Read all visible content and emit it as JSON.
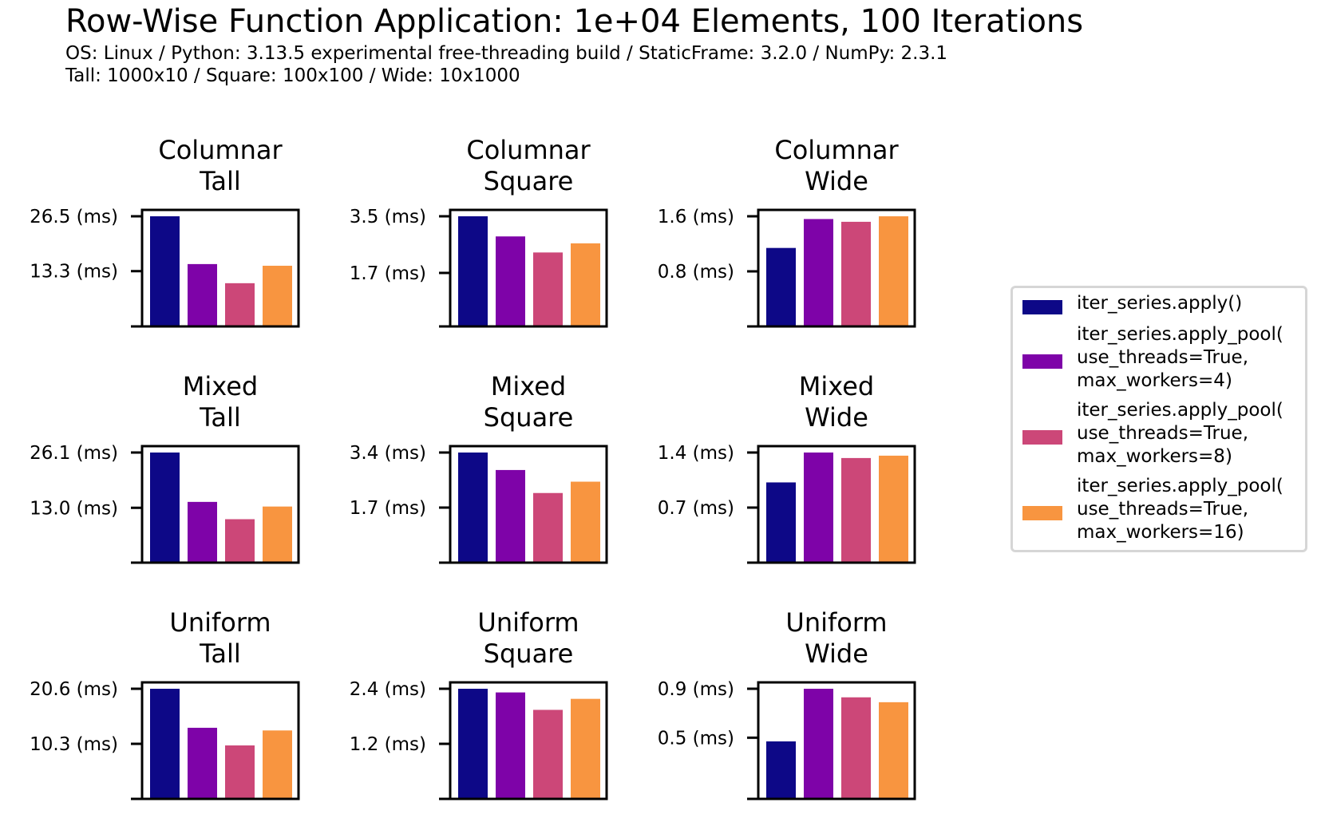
{
  "title": "Row-Wise Function Application: 1e+04 Elements, 100 Iterations",
  "subtitle_lines": [
    "OS: Linux / Python: 3.13.5 experimental free-threading build / StaticFrame: 3.2.0 / NumPy: 2.3.1",
    "Tall: 1000x10 / Square: 100x100 / Wide: 10x1000"
  ],
  "colors": [
    "#0d0887",
    "#7e03a8",
    "#cc4778",
    "#f89540"
  ],
  "legend": [
    "iter_series.apply()",
    "iter_series.apply_pool(\nuse_threads=True,\nmax_workers=4)",
    "iter_series.apply_pool(\nuse_threads=True,\nmax_workers=8)",
    "iter_series.apply_pool(\nuse_threads=True,\nmax_workers=16)"
  ],
  "chart_data": [
    {
      "type": "bar",
      "title": "Columnar\nTall",
      "yticks": [
        13.3,
        26.5
      ],
      "ytick_labels": [
        "13.3 (ms)",
        "26.5 (ms)"
      ],
      "values": [
        26.5,
        15.0,
        10.4,
        14.6
      ]
    },
    {
      "type": "bar",
      "title": "Columnar\nSquare",
      "yticks": [
        1.7,
        3.5
      ],
      "ytick_labels": [
        "1.7 (ms)",
        "3.5 (ms)"
      ],
      "values": [
        3.5,
        2.86,
        2.35,
        2.64
      ]
    },
    {
      "type": "bar",
      "title": "Columnar\nWide",
      "yticks": [
        0.8,
        1.6
      ],
      "ytick_labels": [
        "0.8 (ms)",
        "1.6 (ms)"
      ],
      "values": [
        1.14,
        1.56,
        1.52,
        1.6
      ]
    },
    {
      "type": "bar",
      "title": "Mixed\nTall",
      "yticks": [
        13.0,
        26.1
      ],
      "ytick_labels": [
        "13.0 (ms)",
        "26.1 (ms)"
      ],
      "values": [
        26.1,
        14.4,
        10.3,
        13.3
      ]
    },
    {
      "type": "bar",
      "title": "Mixed\nSquare",
      "yticks": [
        1.7,
        3.4
      ],
      "ytick_labels": [
        "1.7 (ms)",
        "3.4 (ms)"
      ],
      "values": [
        3.4,
        2.86,
        2.15,
        2.5
      ]
    },
    {
      "type": "bar",
      "title": "Mixed\nWide",
      "yticks": [
        0.7,
        1.4
      ],
      "ytick_labels": [
        "0.7 (ms)",
        "1.4 (ms)"
      ],
      "values": [
        1.02,
        1.4,
        1.33,
        1.36
      ]
    },
    {
      "type": "bar",
      "title": "Uniform\nTall",
      "yticks": [
        10.3,
        20.6
      ],
      "ytick_labels": [
        "10.3 (ms)",
        "20.6 (ms)"
      ],
      "values": [
        20.6,
        13.3,
        10.0,
        12.8
      ]
    },
    {
      "type": "bar",
      "title": "Uniform\nSquare",
      "yticks": [
        1.2,
        2.4
      ],
      "ytick_labels": [
        "1.2 (ms)",
        "2.4 (ms)"
      ],
      "values": [
        2.4,
        2.32,
        1.94,
        2.18
      ]
    },
    {
      "type": "bar",
      "title": "Uniform\nWide",
      "yticks": [
        0.5,
        0.9
      ],
      "ytick_labels": [
        "0.5 (ms)",
        "0.9 (ms)"
      ],
      "values": [
        0.47,
        0.9,
        0.83,
        0.79
      ]
    }
  ]
}
